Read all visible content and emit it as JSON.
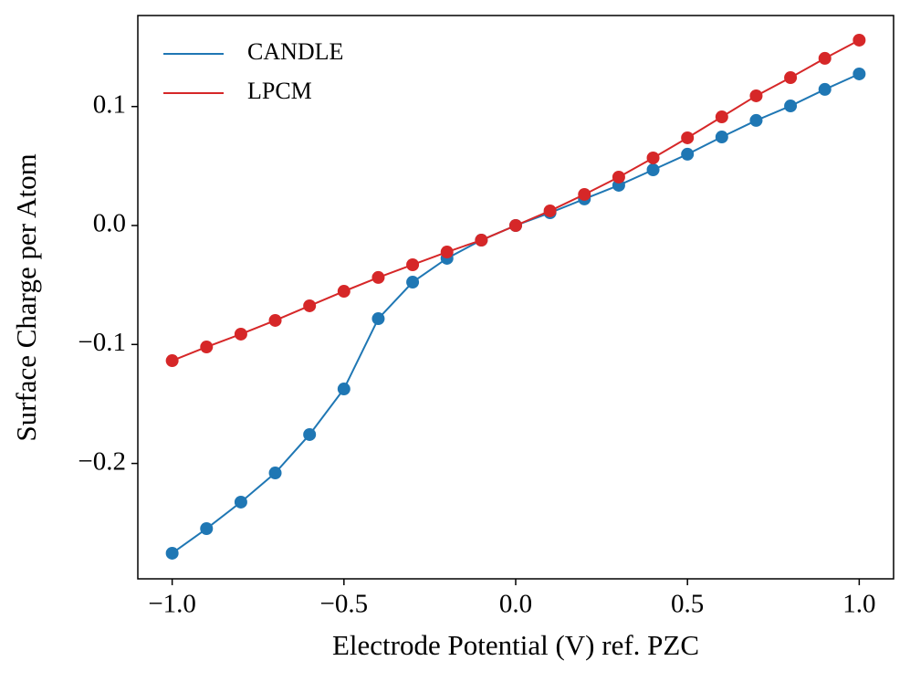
{
  "chart_data": {
    "type": "line",
    "xlabel": "Electrode Potential (V) ref. PZC",
    "ylabel": "Surface Charge per Atom",
    "x": [
      -1.0,
      -0.9,
      -0.8,
      -0.7,
      -0.6,
      -0.5,
      -0.4,
      -0.3,
      -0.2,
      -0.1,
      0.0,
      0.1,
      0.2,
      0.3,
      0.4,
      0.5,
      0.6,
      0.7,
      0.8,
      0.9,
      1.0
    ],
    "series": [
      {
        "name": "CANDLE",
        "color": "#1f77b4",
        "values": [
          -0.2755,
          -0.2548,
          -0.2325,
          -0.208,
          -0.1757,
          -0.1374,
          -0.0783,
          -0.0476,
          -0.0276,
          -0.0123,
          0.0,
          0.0107,
          0.0223,
          0.0338,
          0.0468,
          0.0599,
          0.0744,
          0.0883,
          0.1005,
          0.1144,
          0.1274
        ]
      },
      {
        "name": "LPCM",
        "color": "#d62728",
        "values": [
          -0.1136,
          -0.1021,
          -0.0913,
          -0.0798,
          -0.0675,
          -0.0553,
          -0.0437,
          -0.033,
          -0.0223,
          -0.0123,
          0.0,
          0.0123,
          0.0261,
          0.0407,
          0.0568,
          0.0737,
          0.0913,
          0.109,
          0.1243,
          0.1405,
          0.1558
        ]
      }
    ],
    "xlim": [
      -1.1,
      1.1
    ],
    "ylim": [
      -0.297,
      0.1765
    ],
    "xticks": [
      {
        "value": -1.0,
        "label": "−1.0"
      },
      {
        "value": -0.5,
        "label": "−0.5"
      },
      {
        "value": 0.0,
        "label": "0.0"
      },
      {
        "value": 0.5,
        "label": "0.5"
      },
      {
        "value": 1.0,
        "label": "1.0"
      }
    ],
    "yticks": [
      {
        "value": -0.2,
        "label": "−0.2"
      },
      {
        "value": -0.1,
        "label": "−0.1"
      },
      {
        "value": 0.0,
        "label": "0.0"
      },
      {
        "value": 0.1,
        "label": "0.1"
      }
    ],
    "legend": "upper left",
    "grid": false
  }
}
